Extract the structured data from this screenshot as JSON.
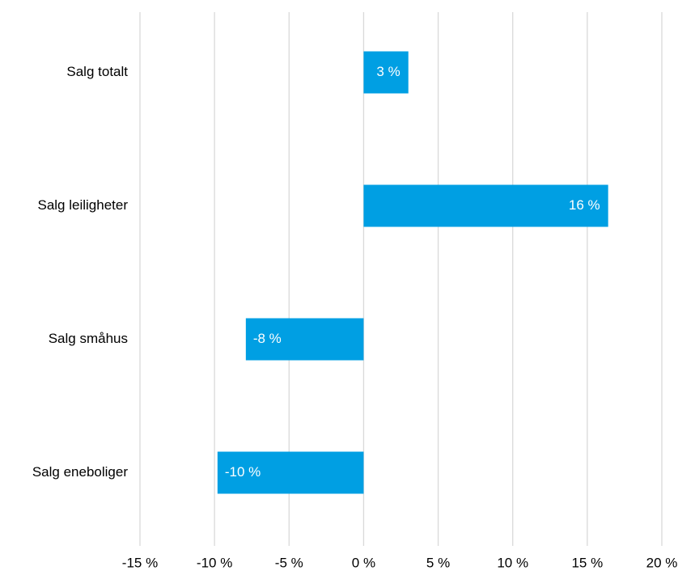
{
  "chart_data": {
    "type": "bar",
    "orientation": "horizontal",
    "categories": [
      "Salg totalt",
      "Salg leiligheter",
      "Salg småhus",
      "Salg eneboliger"
    ],
    "values": [
      3,
      16.4,
      -7.9,
      -9.8
    ],
    "value_labels": [
      "3 %",
      "16 %",
      "-8 %",
      "-10 %"
    ],
    "color": "#009fe3",
    "xlim": [
      -15,
      20
    ],
    "xticks": [
      {
        "value": -15,
        "label": "-15 %"
      },
      {
        "value": -10,
        "label": "-10 %"
      },
      {
        "value": -5,
        "label": "-5 %"
      },
      {
        "value": 0,
        "label": "0 %"
      },
      {
        "value": 5,
        "label": "5 %"
      },
      {
        "value": 10,
        "label": "10 %"
      },
      {
        "value": 15,
        "label": "15 %"
      },
      {
        "value": 20,
        "label": "20 %"
      }
    ],
    "grid": true
  }
}
